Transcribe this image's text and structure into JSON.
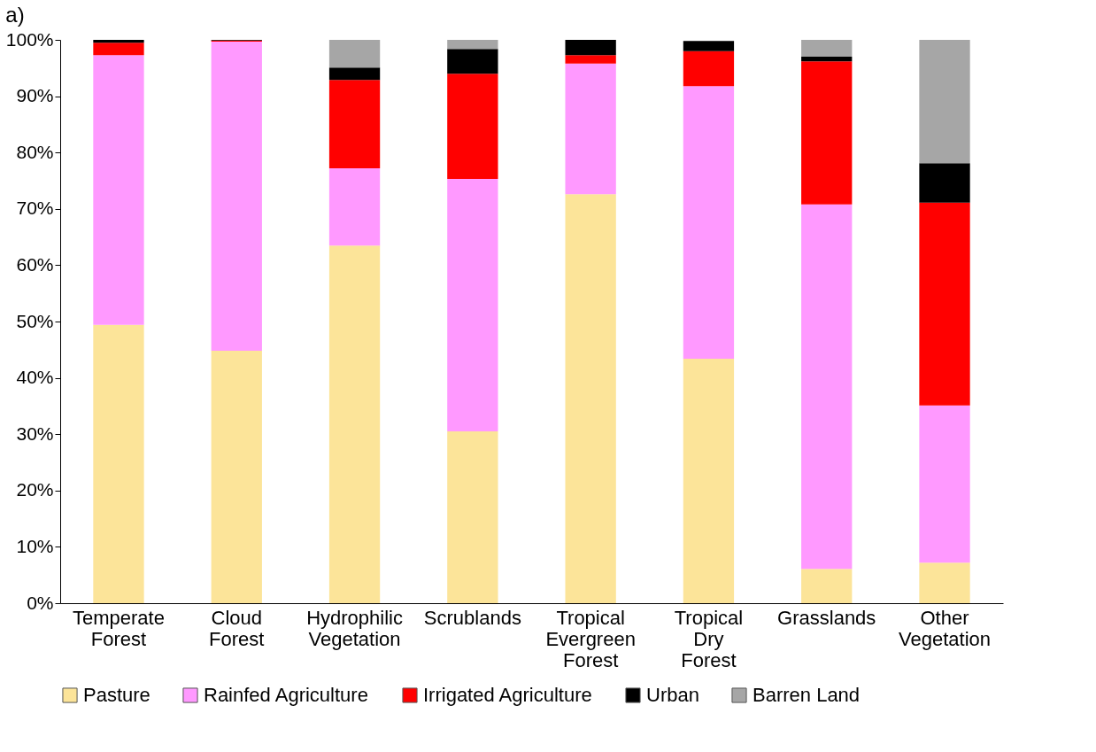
{
  "chart_data": {
    "type": "bar",
    "title": "a)",
    "stacked": true,
    "legend": "bottom",
    "grid": false,
    "categories": [
      "Temperate Forest",
      "Cloud Forest",
      "Hydrophilic Vegetation",
      "Scrublands",
      "Tropical Evergreen Forest",
      "Tropical Dry Forest",
      "Grasslands",
      "Other Vegetation"
    ],
    "ylim": [
      0,
      100
    ],
    "yticks": [
      {
        "value": 0,
        "label": "0%"
      },
      {
        "value": 10,
        "label": "10%"
      },
      {
        "value": 20,
        "label": "20%"
      },
      {
        "value": 30,
        "label": "30%"
      },
      {
        "value": 40,
        "label": "40%"
      },
      {
        "value": 50,
        "label": "50%"
      },
      {
        "value": 60,
        "label": "60%"
      },
      {
        "value": 70,
        "label": "70%"
      },
      {
        "value": 80,
        "label": "80%"
      },
      {
        "value": 90,
        "label": "90%"
      },
      {
        "value": 100,
        "label": "100%"
      }
    ],
    "series": [
      {
        "name": "Pasture",
        "color": "#fce499",
        "values": [
          49.4,
          44.8,
          63.5,
          30.5,
          72.6,
          43.4,
          6.1,
          7.2
        ]
      },
      {
        "name": "Rainfed Agriculture",
        "color": "#ff99ff",
        "values": [
          47.9,
          54.9,
          13.7,
          44.8,
          23.2,
          48.4,
          64.7,
          27.9
        ]
      },
      {
        "name": "Irrigated Agriculture",
        "color": "#ff0000",
        "values": [
          2.2,
          0.2,
          15.7,
          18.7,
          1.5,
          6.2,
          25.4,
          36.0
        ]
      },
      {
        "name": "Urban",
        "color": "#000000",
        "values": [
          0.5,
          0.1,
          2.2,
          4.4,
          2.7,
          1.8,
          0.8,
          7.0
        ]
      },
      {
        "name": "Barren Land",
        "color": "#a6a6a6",
        "values": [
          0,
          0,
          4.9,
          1.6,
          0,
          0,
          3.0,
          21.9
        ]
      }
    ]
  }
}
